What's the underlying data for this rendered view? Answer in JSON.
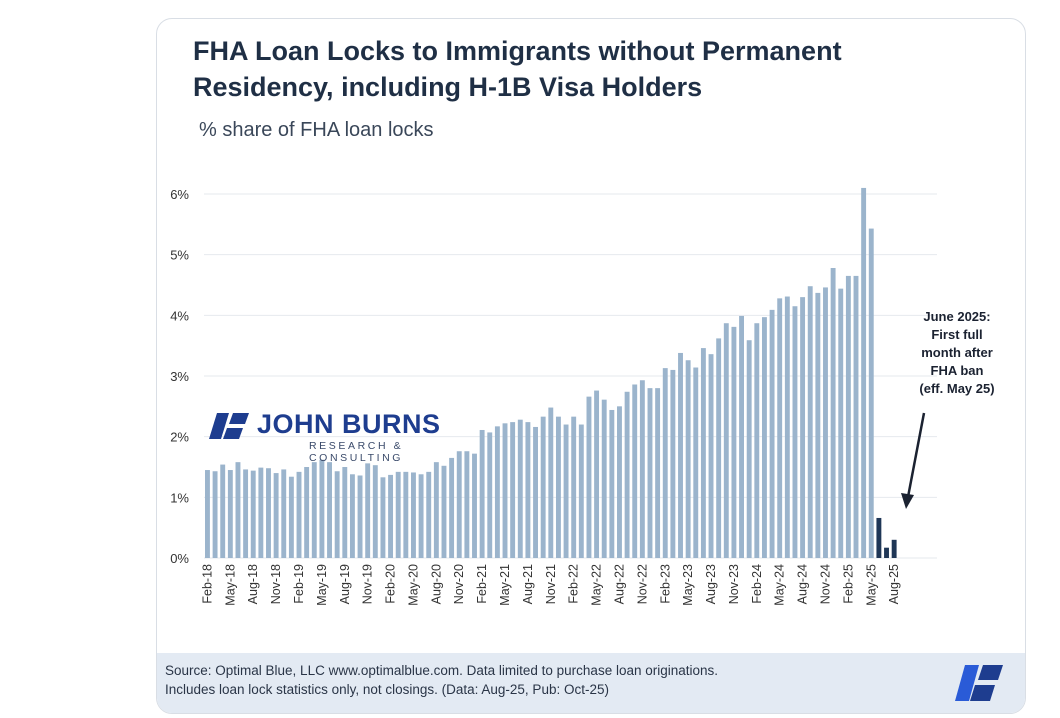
{
  "title": "FHA Loan Locks to Immigrants without Permanent Residency, including H-1B Visa Holders",
  "subtitle": "% share of FHA loan locks",
  "logo": {
    "name": "JOHN BURNS",
    "tagline": "RESEARCH & CONSULTING"
  },
  "annotation": {
    "lines": [
      "June 2025:",
      "First full",
      "month after",
      "FHA ban",
      "(eff. May 25)"
    ]
  },
  "footer": {
    "line1": "Source: Optimal Blue, LLC www.optimalblue.com. Data limited to purchase loan originations.",
    "line2": "Includes loan lock statistics only, not closings. (Data: Aug-25, Pub: Oct-25)"
  },
  "colors": {
    "bar": "#9bb4cc",
    "bar_highlight": "#1f3656",
    "title": "#1f2f45",
    "footer_bg": "#e3eaf3",
    "logo": "#1e3d8f"
  },
  "chart_data": {
    "type": "bar",
    "ylim": [
      0,
      6
    ],
    "yticks": [
      "0%",
      "1%",
      "2%",
      "3%",
      "4%",
      "5%",
      "6%"
    ],
    "ytick_values": [
      0,
      1,
      2,
      3,
      4,
      5,
      6
    ],
    "grid": true,
    "start": "Feb-18",
    "tick_labels": [
      "Feb-18",
      "May-18",
      "Aug-18",
      "Nov-18",
      "Feb-19",
      "May-19",
      "Aug-19",
      "Nov-19",
      "Feb-20",
      "May-20",
      "Aug-20",
      "Nov-20",
      "Feb-21",
      "May-21",
      "Aug-21",
      "Nov-21",
      "Feb-22",
      "May-22",
      "Aug-22",
      "Nov-22",
      "Feb-23",
      "May-23",
      "Aug-23",
      "Nov-23",
      "Feb-24",
      "May-24",
      "Aug-24",
      "Nov-24",
      "Feb-25",
      "May-25",
      "Aug-25"
    ],
    "highlight_from": "Jun-25",
    "values": [
      1.45,
      1.43,
      1.54,
      1.45,
      1.58,
      1.46,
      1.44,
      1.49,
      1.48,
      1.4,
      1.46,
      1.34,
      1.42,
      1.5,
      1.58,
      1.62,
      1.58,
      1.43,
      1.5,
      1.38,
      1.36,
      1.56,
      1.53,
      1.33,
      1.37,
      1.42,
      1.42,
      1.41,
      1.38,
      1.42,
      1.58,
      1.52,
      1.65,
      1.76,
      1.76,
      1.72,
      2.11,
      2.07,
      2.17,
      2.22,
      2.24,
      2.28,
      2.24,
      2.16,
      2.33,
      2.48,
      2.33,
      2.2,
      2.33,
      2.2,
      2.66,
      2.76,
      2.61,
      2.44,
      2.5,
      2.74,
      2.86,
      2.93,
      2.8,
      2.8,
      3.13,
      3.1,
      3.38,
      3.26,
      3.14,
      3.46,
      3.36,
      3.62,
      3.87,
      3.81,
      3.99,
      3.59,
      3.87,
      3.97,
      4.09,
      4.28,
      4.31,
      4.15,
      4.3,
      4.48,
      4.37,
      4.46,
      4.78,
      4.44,
      4.65,
      4.65,
      6.1,
      5.43,
      0.66,
      0.17,
      0.3
    ]
  }
}
